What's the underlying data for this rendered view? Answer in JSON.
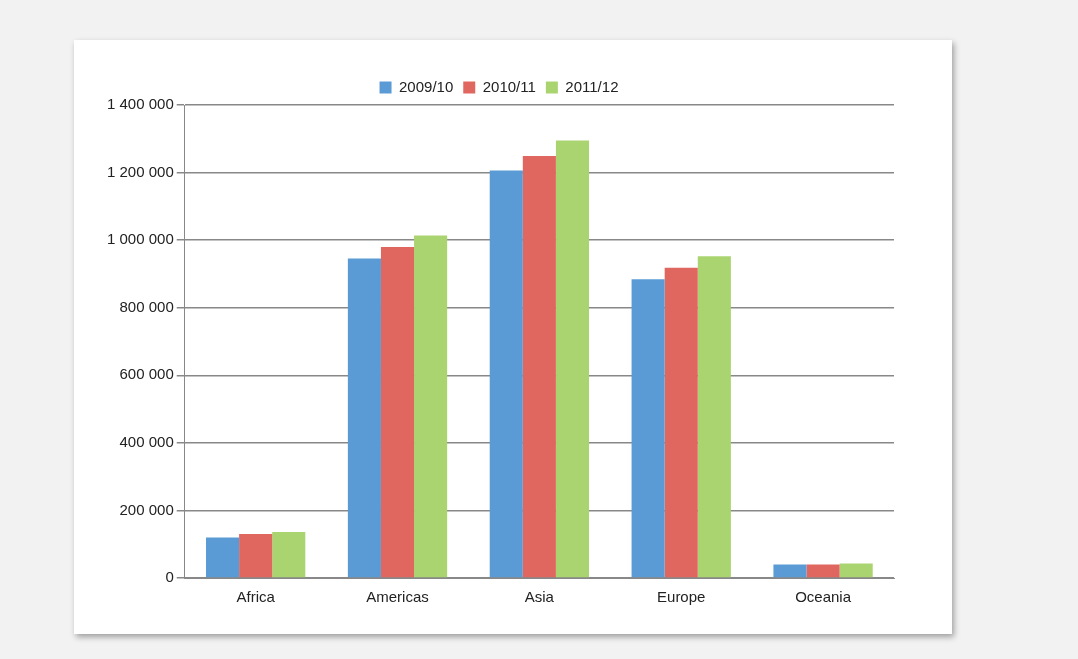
{
  "chart_data": {
    "type": "bar",
    "categories": [
      "Africa",
      "Americas",
      "Asia",
      "Europe",
      "Oceania"
    ],
    "series": [
      {
        "name": "2009/10",
        "color": "#5b9bd5",
        "values": [
          120000,
          946000,
          1206000,
          884000,
          40000
        ]
      },
      {
        "name": "2010/11",
        "color": "#e0675f",
        "values": [
          130000,
          980000,
          1249000,
          918000,
          40000
        ]
      },
      {
        "name": "2011/12",
        "color": "#a9d470",
        "values": [
          136000,
          1014000,
          1295000,
          952000,
          43000
        ]
      }
    ],
    "ylim": [
      0,
      1400000
    ],
    "yticks": [
      0,
      200000,
      400000,
      600000,
      800000,
      1000000,
      1200000,
      1400000
    ],
    "grid": "y",
    "legend": "top"
  }
}
